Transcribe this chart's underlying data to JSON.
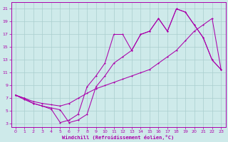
{
  "xlabel": "Windchill (Refroidissement éolien,°C)",
  "bg_color": "#ceeaea",
  "grid_color": "#aacece",
  "line_color": "#aa00aa",
  "xlim": [
    -0.5,
    23.5
  ],
  "ylim": [
    2.5,
    22
  ],
  "xticks": [
    0,
    1,
    2,
    3,
    4,
    5,
    6,
    7,
    8,
    9,
    10,
    11,
    12,
    13,
    14,
    15,
    16,
    17,
    18,
    19,
    20,
    21,
    22,
    23
  ],
  "yticks": [
    3,
    5,
    7,
    9,
    11,
    13,
    15,
    17,
    19,
    21
  ],
  "line1_x": [
    0,
    1,
    2,
    3,
    4,
    5,
    6,
    7,
    8,
    9,
    10,
    11,
    12,
    13,
    14,
    15,
    16,
    17,
    18,
    19,
    20,
    21,
    22,
    23
  ],
  "line1_y": [
    7.5,
    7.0,
    6.5,
    6.2,
    6.0,
    5.8,
    6.2,
    7.0,
    7.8,
    8.5,
    9.0,
    9.5,
    10.0,
    10.5,
    11.0,
    11.5,
    12.5,
    13.5,
    14.5,
    16.0,
    17.5,
    18.5,
    19.5,
    11.5
  ],
  "line2_x": [
    0,
    1,
    2,
    3,
    4,
    5,
    6,
    7,
    8,
    9,
    10,
    11,
    12,
    13,
    14,
    15,
    16,
    17,
    18,
    19,
    20,
    21,
    22,
    23
  ],
  "line2_y": [
    7.5,
    7.0,
    6.2,
    5.8,
    5.3,
    3.2,
    3.6,
    4.5,
    8.8,
    10.5,
    12.5,
    17.0,
    17.0,
    14.5,
    17.0,
    17.5,
    19.5,
    17.5,
    21.0,
    20.5,
    18.5,
    16.5,
    13.0,
    11.5
  ],
  "line3_x": [
    0,
    1,
    2,
    3,
    4,
    5,
    6,
    7,
    8,
    9,
    10,
    11,
    12,
    13,
    14,
    15,
    16,
    17,
    18,
    19,
    20,
    21,
    22,
    23
  ],
  "line3_y": [
    7.5,
    6.8,
    6.2,
    5.8,
    5.5,
    5.2,
    3.2,
    3.6,
    4.5,
    8.8,
    10.5,
    12.5,
    13.5,
    14.5,
    17.0,
    17.5,
    19.5,
    17.5,
    21.0,
    20.5,
    18.5,
    16.5,
    13.0,
    11.5
  ]
}
